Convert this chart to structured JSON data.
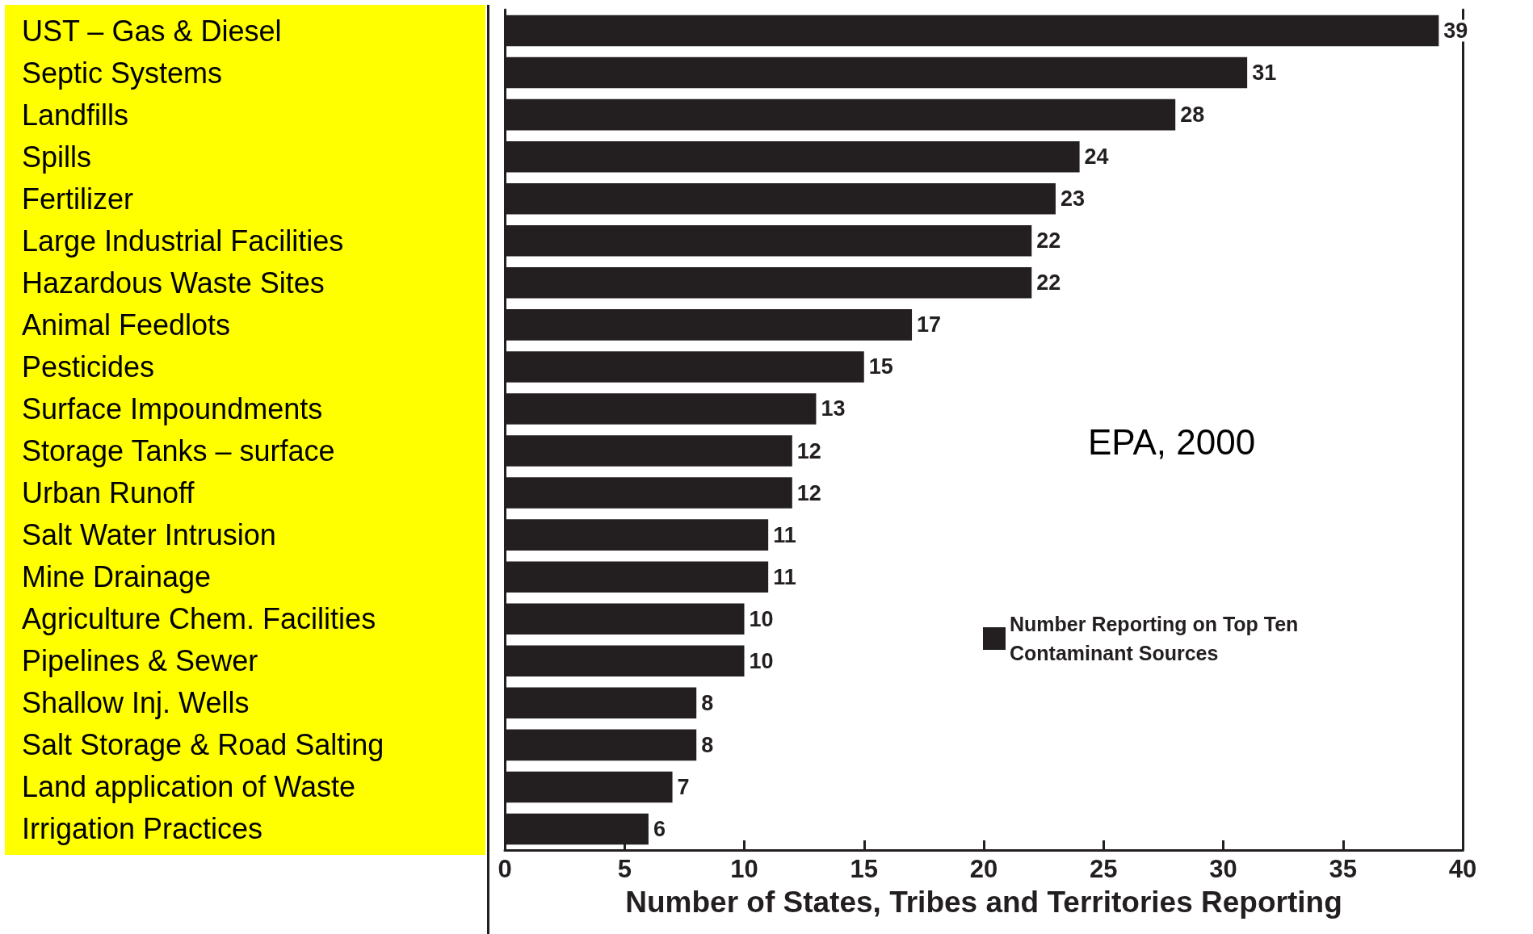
{
  "chart_data": {
    "type": "bar",
    "orientation": "horizontal",
    "categories": [
      "UST – Gas & Diesel",
      "Septic Systems",
      "Landfills",
      "Spills",
      "Fertilizer",
      "Large Industrial Facilities",
      "Hazardous Waste Sites",
      "Animal Feedlots",
      "Pesticides",
      "Surface Impoundments",
      "Storage Tanks – surface",
      "Urban Runoff",
      "Salt Water Intrusion",
      "Mine Drainage",
      "Agriculture Chem. Facilities",
      "Pipelines & Sewer",
      "Shallow Inj. Wells",
      "Salt Storage & Road Salting",
      "Land application of Waste",
      "Irrigation Practices"
    ],
    "series": [
      {
        "name": "Number Reporting on Top Ten Contaminant Sources",
        "color": "#231f20",
        "values": [
          39,
          31,
          28,
          24,
          23,
          22,
          22,
          17,
          15,
          13,
          12,
          12,
          11,
          11,
          10,
          10,
          8,
          8,
          7,
          6
        ]
      }
    ],
    "xlabel": "Number of States, Tribes and Territories Reporting",
    "xlim": [
      0,
      40
    ],
    "xticks": [
      0,
      5,
      10,
      15,
      20,
      25,
      30,
      35,
      40
    ],
    "data_labels": true,
    "legend": "bottom right",
    "grid": false,
    "annotations": [
      "EPA, 2000"
    ]
  }
}
